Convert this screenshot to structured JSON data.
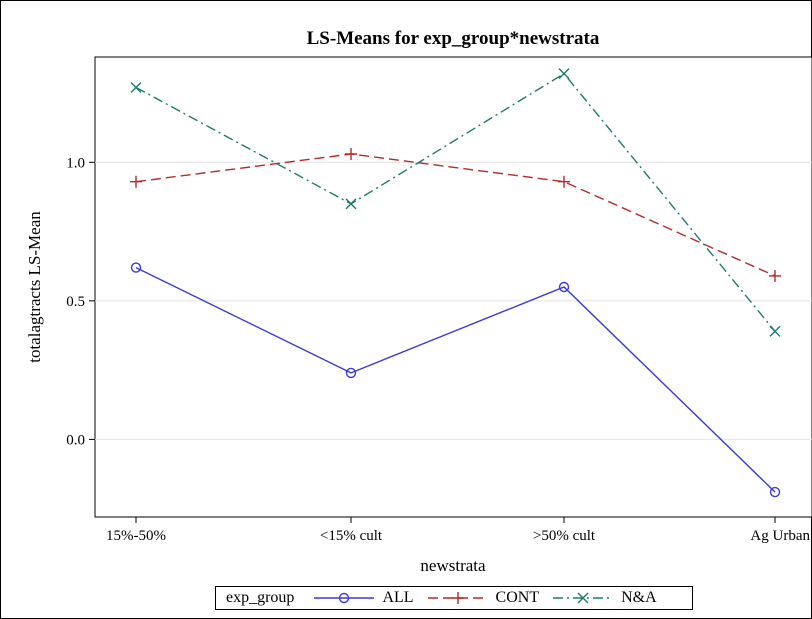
{
  "chart_data": {
    "type": "line",
    "title": "LS-Means for exp_group*newstrata",
    "xlabel": "newstrata",
    "ylabel": "totalagtracts LS-Mean",
    "categories": [
      "15%-50%",
      "<15% cult",
      ">50% cult",
      "Ag Urban"
    ],
    "ylim": [
      -0.28,
      1.38
    ],
    "yticks": [
      "0.0",
      "0.5",
      "1.0"
    ],
    "ytick_values": [
      0.0,
      0.5,
      1.0
    ],
    "grid": true,
    "legend_title": "exp_group",
    "legend_position": "bottom",
    "series": [
      {
        "name": "ALL",
        "values": [
          0.62,
          0.24,
          0.55,
          -0.19
        ],
        "color": "#3a3ad6",
        "marker": "circle",
        "dash": "solid"
      },
      {
        "name": "CONT",
        "values": [
          0.93,
          1.03,
          0.93,
          0.59
        ],
        "color": "#b52a2a",
        "marker": "plus",
        "dash": "dashed"
      },
      {
        "name": "N&A",
        "values": [
          1.27,
          0.85,
          1.32,
          0.39
        ],
        "color": "#1e7a6e",
        "marker": "x",
        "dash": "dashdot"
      }
    ]
  }
}
